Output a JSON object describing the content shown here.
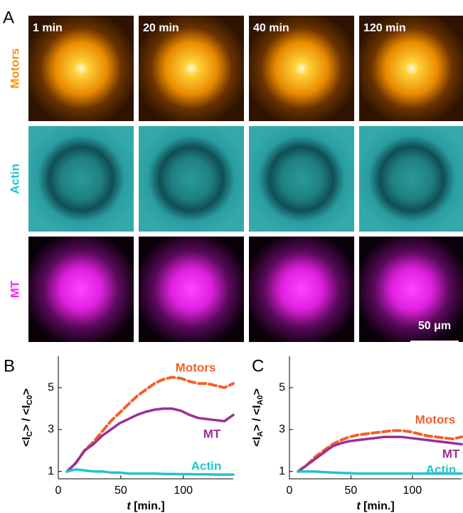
{
  "panels": {
    "letter": "A",
    "columns": [
      "1 min",
      "20 min",
      "40 min",
      "120 min"
    ],
    "rows": [
      {
        "name": "Motors",
        "color": "#f5920f"
      },
      {
        "name": "Actin",
        "color": "#1fc7cf"
      },
      {
        "name": "MT",
        "color": "#ff22ff"
      }
    ],
    "scale_bar": "50 μm"
  },
  "chart_data": [
    {
      "type": "line",
      "letter": "B",
      "y_label": [
        "<I",
        "C",
        "> / <I",
        "C0",
        ">"
      ],
      "x_label": [
        "t",
        " [min.]"
      ],
      "x": [
        7,
        14,
        21,
        28,
        35,
        42,
        49,
        56,
        63,
        70,
        77,
        84,
        91,
        98,
        105,
        112,
        119,
        126,
        133,
        140
      ],
      "xlim": [
        0,
        140
      ],
      "xticks": [
        0,
        50,
        100
      ],
      "ylim": [
        0.65,
        6.5
      ],
      "yticks": [
        1,
        3,
        5
      ],
      "series": [
        {
          "name": "Motors",
          "color": "#f2602a",
          "values": [
            1.0,
            1.4,
            2.0,
            2.4,
            2.9,
            3.4,
            3.8,
            4.2,
            4.6,
            4.9,
            5.2,
            5.4,
            5.5,
            5.45,
            5.3,
            5.2,
            5.2,
            5.1,
            5.0,
            5.2
          ]
        },
        {
          "name": "MT",
          "color": "#9b2f96",
          "values": [
            1.0,
            1.4,
            2.0,
            2.3,
            2.7,
            3.0,
            3.3,
            3.5,
            3.7,
            3.85,
            3.95,
            4.0,
            4.0,
            3.9,
            3.7,
            3.55,
            3.5,
            3.45,
            3.4,
            3.7
          ]
        },
        {
          "name": "Actin",
          "color": "#22c3cf",
          "values": [
            1.0,
            1.1,
            1.05,
            1.0,
            1.0,
            0.95,
            0.95,
            0.9,
            0.9,
            0.9,
            0.9,
            0.88,
            0.88,
            0.87,
            0.87,
            0.86,
            0.86,
            0.85,
            0.85,
            0.85
          ]
        }
      ]
    },
    {
      "type": "line",
      "letter": "C",
      "y_label": [
        "<I",
        "A",
        "> / <I",
        "A0",
        ">"
      ],
      "x_label": [
        "t",
        " [min.]"
      ],
      "x": [
        7,
        14,
        21,
        28,
        35,
        42,
        49,
        56,
        63,
        70,
        77,
        84,
        91,
        98,
        105,
        112,
        119,
        126,
        133,
        140
      ],
      "xlim": [
        0,
        140
      ],
      "xticks": [
        0,
        50,
        100
      ],
      "ylim": [
        0.65,
        6.5
      ],
      "yticks": [
        1,
        3,
        5
      ],
      "series": [
        {
          "name": "Motors",
          "color": "#f2602a",
          "values": [
            1.0,
            1.3,
            1.7,
            2.0,
            2.3,
            2.5,
            2.65,
            2.75,
            2.8,
            2.85,
            2.9,
            2.95,
            2.95,
            2.9,
            2.8,
            2.7,
            2.65,
            2.6,
            2.55,
            2.65
          ]
        },
        {
          "name": "MT",
          "color": "#9b2f96",
          "values": [
            1.0,
            1.3,
            1.6,
            1.9,
            2.2,
            2.35,
            2.45,
            2.5,
            2.55,
            2.6,
            2.65,
            2.65,
            2.65,
            2.6,
            2.55,
            2.5,
            2.45,
            2.4,
            2.35,
            2.3
          ]
        },
        {
          "name": "Actin",
          "color": "#22c3cf",
          "values": [
            1.0,
            1.0,
            1.0,
            0.97,
            0.95,
            0.93,
            0.92,
            0.9,
            0.9,
            0.9,
            0.9,
            0.9,
            0.9,
            0.9,
            0.9,
            0.9,
            0.9,
            0.9,
            0.9,
            0.9
          ]
        }
      ]
    }
  ]
}
